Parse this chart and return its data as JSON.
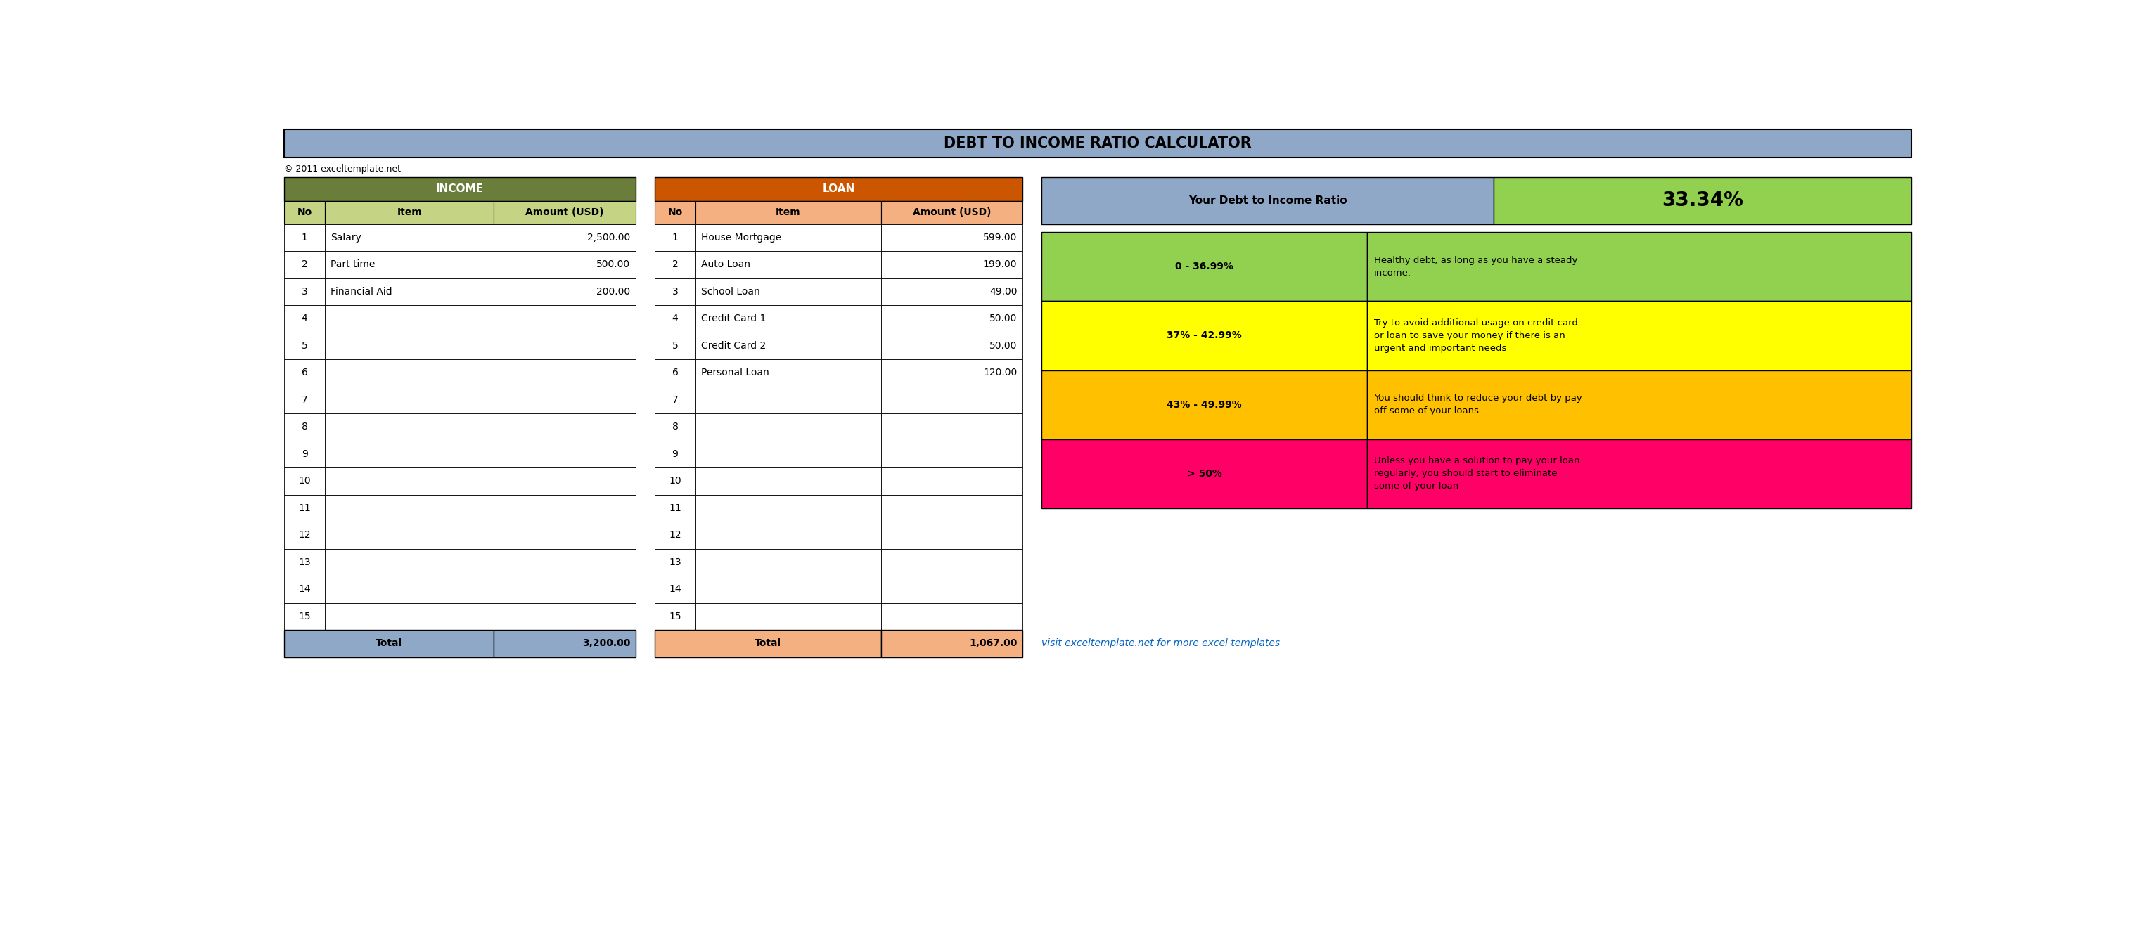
{
  "title": "DEBT TO INCOME RATIO CALCULATOR",
  "copyright": "© 2011 exceltemplate.net",
  "title_bg": "#8fa8c8",
  "income_header_bg": "#6b7d3a",
  "income_header_text": "INCOME",
  "income_subheader_bg": "#c4d484",
  "loan_header_bg": "#cc5500",
  "loan_header_text": "LOAN",
  "loan_subheader_bg": "#f4b080",
  "income_rows": [
    [
      "1",
      "Salary",
      "2,500.00"
    ],
    [
      "2",
      "Part time",
      "500.00"
    ],
    [
      "3",
      "Financial Aid",
      "200.00"
    ],
    [
      "4",
      "",
      ""
    ],
    [
      "5",
      "",
      ""
    ],
    [
      "6",
      "",
      ""
    ],
    [
      "7",
      "",
      ""
    ],
    [
      "8",
      "",
      ""
    ],
    [
      "9",
      "",
      ""
    ],
    [
      "10",
      "",
      ""
    ],
    [
      "11",
      "",
      ""
    ],
    [
      "12",
      "",
      ""
    ],
    [
      "13",
      "",
      ""
    ],
    [
      "14",
      "",
      ""
    ],
    [
      "15",
      "",
      ""
    ]
  ],
  "loan_rows": [
    [
      "1",
      "House Mortgage",
      "599.00"
    ],
    [
      "2",
      "Auto Loan",
      "199.00"
    ],
    [
      "3",
      "School Loan",
      "49.00"
    ],
    [
      "4",
      "Credit Card 1",
      "50.00"
    ],
    [
      "5",
      "Credit Card 2",
      "50.00"
    ],
    [
      "6",
      "Personal Loan",
      "120.00"
    ],
    [
      "7",
      "",
      ""
    ],
    [
      "8",
      "",
      ""
    ],
    [
      "9",
      "",
      ""
    ],
    [
      "10",
      "",
      ""
    ],
    [
      "11",
      "",
      ""
    ],
    [
      "12",
      "",
      ""
    ],
    [
      "13",
      "",
      ""
    ],
    [
      "14",
      "",
      ""
    ],
    [
      "15",
      "",
      ""
    ]
  ],
  "income_total_label": "Total",
  "income_total_value": "3,200.00",
  "loan_total_label": "Total",
  "loan_total_value": "1,067.00",
  "income_total_bg": "#8fa8c8",
  "loan_total_bg": "#f4b080",
  "ratio_label": "Your Debt to Income Ratio",
  "ratio_value": "33.34%",
  "ratio_label_bg": "#8fa8c8",
  "ratio_value_bg": "#92d050",
  "range_rows": [
    {
      "range": "0 - 36.99%",
      "desc": "Healthy debt, as long as you have a steady\nincome.",
      "bg": "#92d050"
    },
    {
      "range": "37% - 42.99%",
      "desc": "Try to avoid additional usage on credit card\nor loan to save your money if there is an\nurgent and important needs",
      "bg": "#ffff00"
    },
    {
      "range": "43% - 49.99%",
      "desc": "You should think to reduce your debt by pay\noff some of your loans",
      "bg": "#ffc000"
    },
    {
      "range": "> 50%",
      "desc": "Unless you have a solution to pay your loan\nregularly, you should start to eliminate\nsome of your loan",
      "bg": "#ff0066"
    }
  ],
  "link_text": "visit exceltemplate.net for more excel templates",
  "link_color": "#0563c1",
  "bg_white": "#ffffff"
}
